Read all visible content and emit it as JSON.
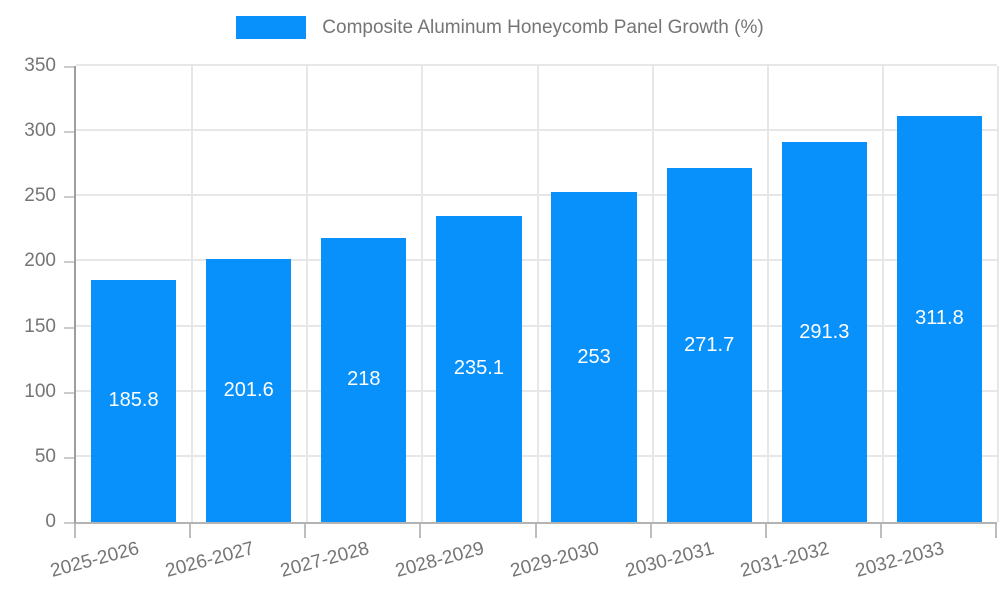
{
  "chart_data": {
    "type": "bar",
    "title": "Composite Aluminum Honeycomb Panel Growth (%)",
    "legend": {
      "position": "top",
      "entries": [
        "Composite Aluminum Honeycomb Panel Growth (%)"
      ]
    },
    "categories": [
      "2025-2026",
      "2026-2027",
      "2027-2028",
      "2028-2029",
      "2029-2030",
      "2030-2031",
      "2031-2032",
      "2032-2033"
    ],
    "values": [
      185.8,
      201.6,
      218,
      235.1,
      253,
      271.7,
      291.3,
      311.8
    ],
    "value_labels": [
      "185.8",
      "201.6",
      "218",
      "235.1",
      "253",
      "271.7",
      "291.3",
      "311.8"
    ],
    "xlabel": "",
    "ylabel": "",
    "ylim": [
      0,
      350
    ],
    "yticks": [
      0,
      50,
      100,
      150,
      200,
      250,
      300,
      350
    ],
    "grid": true,
    "colors": {
      "bar": "#0991fb",
      "value_label": "#ffffff",
      "axis_text": "#757575",
      "grid_line": "#e7e7e7",
      "axis_line": "#9e9e9e",
      "background": "#ffffff"
    }
  }
}
